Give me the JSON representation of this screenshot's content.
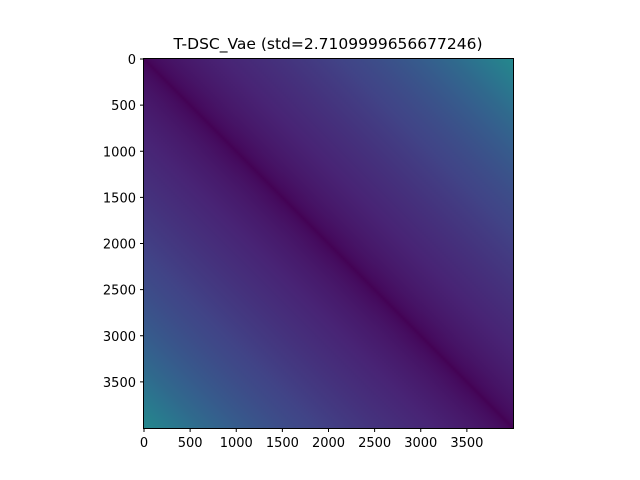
{
  "chart_data": {
    "type": "heatmap",
    "title": "T-DSC_Vae (std=2.7109999656677246)",
    "xlabel": "",
    "ylabel": "",
    "xlim": [
      0,
      4000
    ],
    "ylim": [
      4000,
      0
    ],
    "y_axis_direction": "top-to-bottom",
    "x_ticks": [
      "0",
      "500",
      "1000",
      "1500",
      "2000",
      "2500",
      "3000",
      "3500"
    ],
    "y_ticks": [
      "0",
      "500",
      "1000",
      "1500",
      "2000",
      "2500",
      "3000",
      "3500"
    ],
    "x_tick_values": [
      0,
      500,
      1000,
      1500,
      2000,
      2500,
      3000,
      3500
    ],
    "y_tick_values": [
      0,
      500,
      1000,
      1500,
      2000,
      2500,
      3000,
      3500
    ],
    "colormap": "viridis",
    "grid": false,
    "legend": "none",
    "pattern": "symmetric distance matrix: minimum (dark purple) along the main diagonal, increasing with |x - y|; highest values (green) at the off-diagonal corners"
  },
  "colors": {
    "low": "#440154",
    "mid": "#3b528b",
    "high": "#21918c",
    "peak": "#35b779",
    "axis": "#000000",
    "background": "#ffffff"
  }
}
